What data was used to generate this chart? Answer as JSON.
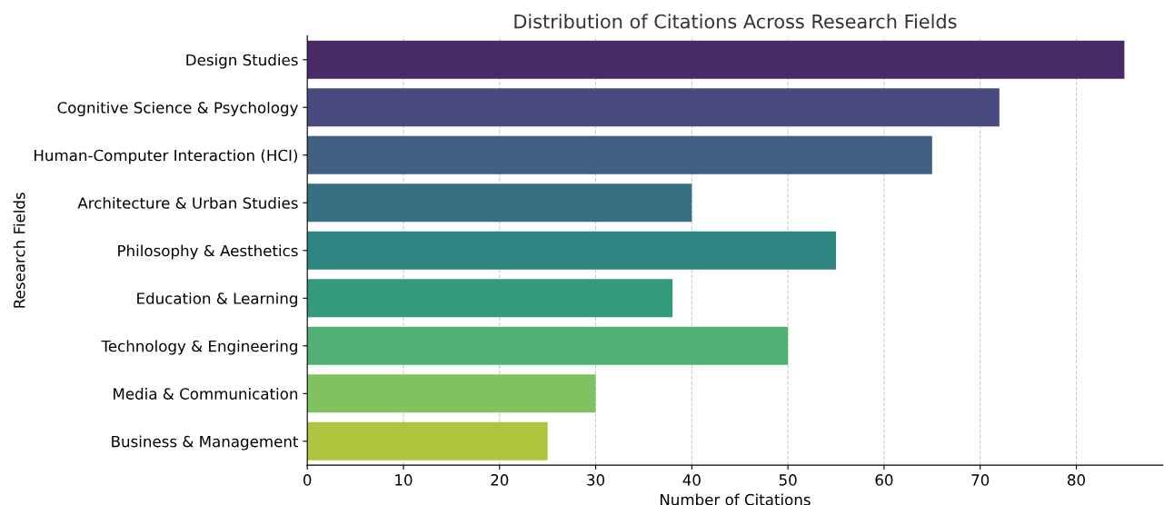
{
  "chart_data": {
    "type": "bar",
    "orientation": "horizontal",
    "title": "Distribution of Citations Across Research Fields",
    "xlabel": "Number of Citations",
    "ylabel": "Research Fields",
    "categories": [
      "Design Studies",
      "Cognitive Science & Psychology",
      "Human-Computer Interaction (HCI)",
      "Architecture & Urban Studies",
      "Philosophy & Aesthetics",
      "Education & Learning",
      "Technology & Engineering",
      "Media & Communication",
      "Business & Management"
    ],
    "values": [
      85,
      72,
      65,
      40,
      55,
      38,
      50,
      30,
      25
    ],
    "colors": [
      "#482a67",
      "#494b7f",
      "#405f82",
      "#377081",
      "#2e8480",
      "#339a7b",
      "#53b074",
      "#80c160",
      "#adc63e"
    ],
    "xlim": [
      0,
      89
    ],
    "xticks": [
      0,
      10,
      20,
      30,
      40,
      50,
      60,
      70,
      80
    ],
    "grid": "x",
    "line_style": "dashed",
    "legend": false
  }
}
